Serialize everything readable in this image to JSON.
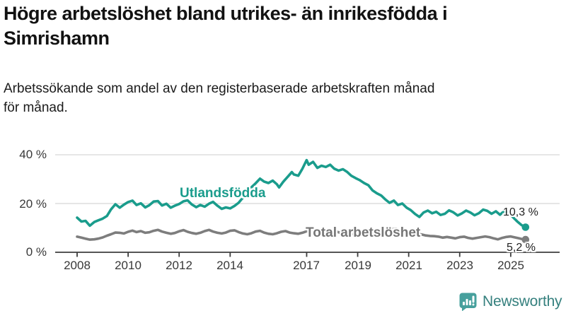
{
  "header": {
    "title_lines": [
      "Högre arbetslöshet bland utrikes- än inrikesfödda i",
      "Simrishamn"
    ],
    "subtitle_lines": [
      "Arbetssökande som andel av den registerbaserade arbetskraften månad",
      "för månad."
    ]
  },
  "colors": {
    "foreign_born_line": "#1a9c8c",
    "total_line": "#7d7d7d",
    "axis": "#3d3d3d",
    "grid": "#d8d8d8",
    "tick_text": "#383838",
    "title_text": "#121212",
    "brand_icon": "#47a09d",
    "brand_text": "#35807e"
  },
  "branding": {
    "name": "Newsworthy"
  },
  "chart_data": {
    "type": "line",
    "title": "Högre arbetslöshet bland utrikes- än inrikesfödda i Simrishamn",
    "subtitle": "Arbetssökande som andel av den registerbaserade arbetskraften månad för månad.",
    "xlabel": "",
    "ylabel": "",
    "unit": "%",
    "grid": "horizontal",
    "legend_position": "inline-labels",
    "xlim": [
      2008,
      2025.6
    ],
    "ylim": [
      0,
      44
    ],
    "x_ticks": [
      2008,
      2010,
      2012,
      2014,
      2017,
      2019,
      2021,
      2023,
      2025
    ],
    "y_tick_labels": [
      "40 %",
      "20 %",
      "0 %"
    ],
    "y_gridlines": [
      40,
      20
    ],
    "series": [
      {
        "name": "Utlandsfödda",
        "color": "#1a9c8c",
        "end_label": "10,3 %",
        "end_value": 10.3,
        "points": [
          [
            2008.0,
            14.2
          ],
          [
            2008.17,
            12.6
          ],
          [
            2008.33,
            12.9
          ],
          [
            2008.5,
            10.9
          ],
          [
            2008.67,
            12.4
          ],
          [
            2008.83,
            13.1
          ],
          [
            2009.0,
            13.8
          ],
          [
            2009.17,
            14.9
          ],
          [
            2009.33,
            17.6
          ],
          [
            2009.5,
            19.7
          ],
          [
            2009.67,
            18.3
          ],
          [
            2009.83,
            19.5
          ],
          [
            2010.0,
            20.6
          ],
          [
            2010.17,
            21.2
          ],
          [
            2010.33,
            19.4
          ],
          [
            2010.5,
            20.1
          ],
          [
            2010.67,
            18.4
          ],
          [
            2010.83,
            19.3
          ],
          [
            2011.0,
            20.8
          ],
          [
            2011.17,
            21.0
          ],
          [
            2011.33,
            19.2
          ],
          [
            2011.5,
            19.9
          ],
          [
            2011.67,
            18.3
          ],
          [
            2011.83,
            19.1
          ],
          [
            2012.0,
            19.8
          ],
          [
            2012.17,
            20.9
          ],
          [
            2012.33,
            21.3
          ],
          [
            2012.5,
            19.6
          ],
          [
            2012.67,
            18.5
          ],
          [
            2012.83,
            19.4
          ],
          [
            2013.0,
            18.7
          ],
          [
            2013.17,
            19.9
          ],
          [
            2013.33,
            20.7
          ],
          [
            2013.5,
            19.1
          ],
          [
            2013.67,
            17.8
          ],
          [
            2013.83,
            18.4
          ],
          [
            2014.0,
            18.0
          ],
          [
            2014.17,
            19.0
          ],
          [
            2014.33,
            20.3
          ],
          [
            2014.5,
            22.4
          ],
          [
            2014.67,
            24.8
          ],
          [
            2014.83,
            26.6
          ],
          [
            2015.0,
            28.3
          ],
          [
            2015.17,
            30.2
          ],
          [
            2015.33,
            29.0
          ],
          [
            2015.5,
            28.4
          ],
          [
            2015.67,
            29.4
          ],
          [
            2015.83,
            27.9
          ],
          [
            2015.92,
            26.6
          ],
          [
            2016.08,
            28.9
          ],
          [
            2016.25,
            30.9
          ],
          [
            2016.42,
            32.9
          ],
          [
            2016.5,
            31.9
          ],
          [
            2016.67,
            31.4
          ],
          [
            2016.83,
            34.2
          ],
          [
            2017.0,
            37.8
          ],
          [
            2017.08,
            35.9
          ],
          [
            2017.25,
            37.1
          ],
          [
            2017.42,
            34.6
          ],
          [
            2017.58,
            35.5
          ],
          [
            2017.75,
            35.0
          ],
          [
            2017.92,
            35.9
          ],
          [
            2018.08,
            34.3
          ],
          [
            2018.25,
            33.5
          ],
          [
            2018.42,
            34.1
          ],
          [
            2018.58,
            33.0
          ],
          [
            2018.75,
            31.4
          ],
          [
            2018.92,
            30.4
          ],
          [
            2019.08,
            29.6
          ],
          [
            2019.25,
            28.4
          ],
          [
            2019.42,
            27.5
          ],
          [
            2019.58,
            25.4
          ],
          [
            2019.75,
            24.2
          ],
          [
            2019.92,
            23.3
          ],
          [
            2020.08,
            21.7
          ],
          [
            2020.25,
            20.3
          ],
          [
            2020.42,
            21.2
          ],
          [
            2020.58,
            19.4
          ],
          [
            2020.75,
            20.0
          ],
          [
            2020.92,
            18.3
          ],
          [
            2021.08,
            17.3
          ],
          [
            2021.25,
            15.7
          ],
          [
            2021.42,
            14.5
          ],
          [
            2021.58,
            16.3
          ],
          [
            2021.75,
            17.1
          ],
          [
            2021.92,
            16.0
          ],
          [
            2022.08,
            16.6
          ],
          [
            2022.25,
            15.3
          ],
          [
            2022.42,
            15.8
          ],
          [
            2022.58,
            17.2
          ],
          [
            2022.75,
            16.4
          ],
          [
            2022.92,
            15.1
          ],
          [
            2023.08,
            15.9
          ],
          [
            2023.25,
            17.1
          ],
          [
            2023.42,
            16.3
          ],
          [
            2023.58,
            15.2
          ],
          [
            2023.75,
            16.0
          ],
          [
            2023.92,
            17.5
          ],
          [
            2024.08,
            17.0
          ],
          [
            2024.25,
            15.8
          ],
          [
            2024.42,
            16.8
          ],
          [
            2024.58,
            15.4
          ],
          [
            2024.75,
            17.0
          ],
          [
            2024.92,
            16.2
          ],
          [
            2025.08,
            14.5
          ],
          [
            2025.25,
            12.7
          ],
          [
            2025.42,
            11.2
          ],
          [
            2025.58,
            10.3
          ]
        ]
      },
      {
        "name": "Total arbetslöshet",
        "color": "#7d7d7d",
        "end_label": "5,2 %",
        "end_value": 5.2,
        "points": [
          [
            2008.0,
            6.4
          ],
          [
            2008.17,
            6.0
          ],
          [
            2008.33,
            5.6
          ],
          [
            2008.5,
            5.2
          ],
          [
            2008.67,
            5.3
          ],
          [
            2008.83,
            5.6
          ],
          [
            2009.0,
            6.1
          ],
          [
            2009.17,
            6.8
          ],
          [
            2009.33,
            7.4
          ],
          [
            2009.5,
            8.1
          ],
          [
            2009.67,
            8.0
          ],
          [
            2009.83,
            7.7
          ],
          [
            2010.0,
            8.4
          ],
          [
            2010.17,
            8.9
          ],
          [
            2010.33,
            8.3
          ],
          [
            2010.5,
            8.7
          ],
          [
            2010.67,
            8.0
          ],
          [
            2010.83,
            8.2
          ],
          [
            2011.0,
            8.8
          ],
          [
            2011.17,
            9.2
          ],
          [
            2011.33,
            8.5
          ],
          [
            2011.5,
            8.0
          ],
          [
            2011.67,
            7.6
          ],
          [
            2011.83,
            7.9
          ],
          [
            2012.0,
            8.6
          ],
          [
            2012.17,
            9.1
          ],
          [
            2012.33,
            8.4
          ],
          [
            2012.5,
            7.9
          ],
          [
            2012.67,
            7.6
          ],
          [
            2012.83,
            8.0
          ],
          [
            2013.0,
            8.7
          ],
          [
            2013.17,
            9.2
          ],
          [
            2013.33,
            8.5
          ],
          [
            2013.5,
            8.0
          ],
          [
            2013.67,
            7.7
          ],
          [
            2013.83,
            8.1
          ],
          [
            2014.0,
            8.8
          ],
          [
            2014.17,
            9.0
          ],
          [
            2014.33,
            8.3
          ],
          [
            2014.5,
            7.7
          ],
          [
            2014.67,
            7.4
          ],
          [
            2014.83,
            7.8
          ],
          [
            2015.0,
            8.5
          ],
          [
            2015.17,
            8.8
          ],
          [
            2015.33,
            8.1
          ],
          [
            2015.5,
            7.6
          ],
          [
            2015.67,
            7.4
          ],
          [
            2015.83,
            7.8
          ],
          [
            2016.0,
            8.4
          ],
          [
            2016.17,
            8.7
          ],
          [
            2016.33,
            8.1
          ],
          [
            2016.5,
            7.8
          ],
          [
            2016.67,
            7.6
          ],
          [
            2016.83,
            8.0
          ],
          [
            2017.0,
            8.6
          ],
          [
            2017.17,
            8.8
          ],
          [
            2017.33,
            8.2
          ],
          [
            2017.5,
            7.8
          ],
          [
            2017.67,
            7.6
          ],
          [
            2017.83,
            7.9
          ],
          [
            2018.0,
            8.3
          ],
          [
            2018.17,
            8.5
          ],
          [
            2018.33,
            7.9
          ],
          [
            2018.5,
            7.5
          ],
          [
            2018.67,
            7.3
          ],
          [
            2018.83,
            7.6
          ],
          [
            2019.0,
            8.0
          ],
          [
            2019.17,
            8.2
          ],
          [
            2019.33,
            7.8
          ],
          [
            2019.5,
            7.6
          ],
          [
            2019.67,
            7.5
          ],
          [
            2019.83,
            7.8
          ],
          [
            2020.0,
            8.2
          ],
          [
            2020.17,
            8.8
          ],
          [
            2020.33,
            9.4
          ],
          [
            2020.5,
            9.6
          ],
          [
            2020.67,
            9.2
          ],
          [
            2020.83,
            8.8
          ],
          [
            2021.0,
            8.6
          ],
          [
            2021.17,
            8.3
          ],
          [
            2021.33,
            7.8
          ],
          [
            2021.5,
            7.3
          ],
          [
            2021.67,
            6.9
          ],
          [
            2021.83,
            6.7
          ],
          [
            2022.0,
            6.6
          ],
          [
            2022.17,
            6.4
          ],
          [
            2022.33,
            6.0
          ],
          [
            2022.5,
            6.3
          ],
          [
            2022.67,
            6.0
          ],
          [
            2022.83,
            5.7
          ],
          [
            2023.0,
            6.2
          ],
          [
            2023.17,
            6.4
          ],
          [
            2023.33,
            5.9
          ],
          [
            2023.5,
            5.6
          ],
          [
            2023.67,
            5.9
          ],
          [
            2023.83,
            6.2
          ],
          [
            2024.0,
            6.5
          ],
          [
            2024.17,
            6.2
          ],
          [
            2024.33,
            5.7
          ],
          [
            2024.5,
            5.3
          ],
          [
            2024.67,
            5.9
          ],
          [
            2024.83,
            6.3
          ],
          [
            2025.0,
            6.5
          ],
          [
            2025.17,
            6.1
          ],
          [
            2025.33,
            5.7
          ],
          [
            2025.45,
            5.4
          ],
          [
            2025.58,
            5.2
          ]
        ]
      }
    ]
  }
}
